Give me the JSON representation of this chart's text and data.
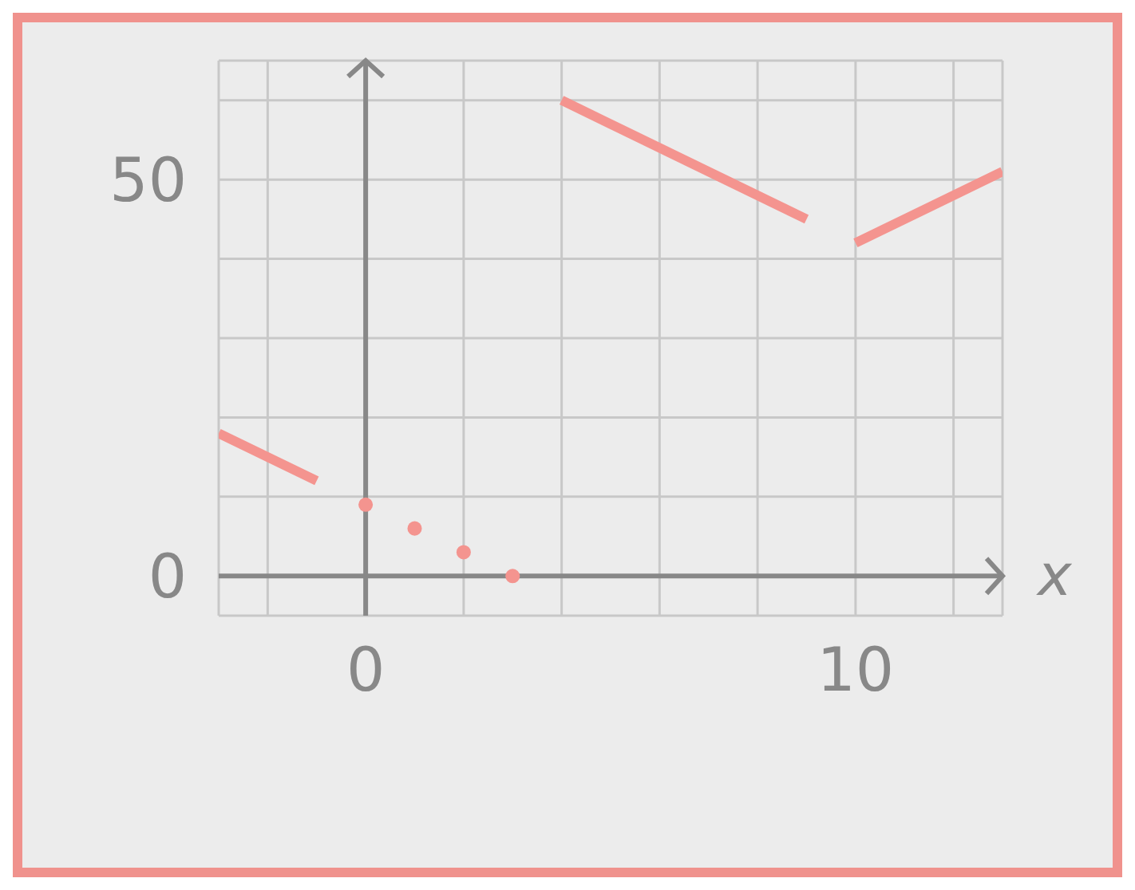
{
  "chart_data": {
    "type": "line",
    "xlabel": "x",
    "series": [
      {
        "color": "#f4948f",
        "x": [
          -3,
          -1
        ],
        "values": [
          18,
          12
        ]
      },
      {
        "color": "#f4948f",
        "x": [
          4,
          9
        ],
        "values": [
          60,
          45
        ]
      },
      {
        "color": "#f4948f",
        "x": [
          10,
          13
        ],
        "values": [
          42,
          51
        ]
      },
      {
        "type": "scatter",
        "color": "#f4948f",
        "x": [
          0,
          1,
          2,
          3
        ],
        "values": [
          9,
          6,
          3,
          0
        ]
      }
    ],
    "xlim": [
      -3,
      13
    ],
    "ylim": [
      -5,
      65
    ],
    "xticks": [
      {
        "value": -2,
        "label": null
      },
      0,
      {
        "value": 2,
        "label": null
      },
      {
        "value": 4,
        "label": null
      },
      {
        "value": 6,
        "label": null
      },
      {
        "value": 8,
        "label": null
      },
      10,
      {
        "value": 12,
        "label": null
      }
    ],
    "yticks": [
      0,
      {
        "value": 10,
        "label": null
      },
      {
        "value": 20,
        "label": null
      },
      {
        "value": 30,
        "label": null
      },
      {
        "value": 40,
        "label": null
      },
      50,
      {
        "value": 60,
        "label": null
      }
    ],
    "grid": true,
    "line_style": "solid"
  }
}
